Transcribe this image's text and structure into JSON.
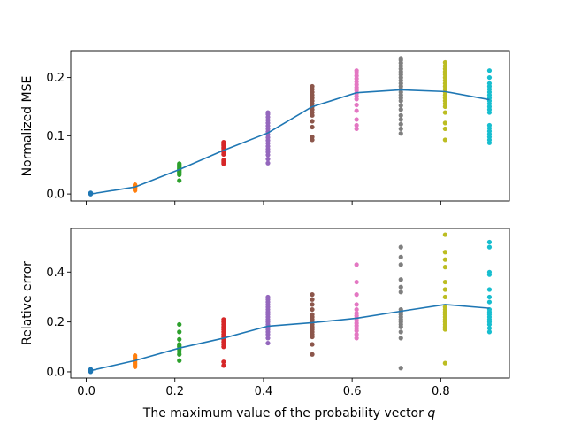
{
  "chart_data": [
    {
      "type": "scatter",
      "ylabel": "Normalized MSE",
      "xlabel": "",
      "xlim": [
        -0.035,
        0.955
      ],
      "ylim": [
        -0.012,
        0.245
      ],
      "xticks": [
        0.0,
        0.2,
        0.4,
        0.6,
        0.8
      ],
      "yticks": [
        0.0,
        0.1,
        0.2
      ],
      "ytick_labels": [
        "0.0",
        "0.1",
        "0.2"
      ],
      "show_xtick_labels": false,
      "grid": false,
      "mean_line": {
        "color": "#1f77b4",
        "x": [
          0.01,
          0.11,
          0.21,
          0.31,
          0.41,
          0.51,
          0.61,
          0.71,
          0.81,
          0.91
        ],
        "y": [
          0.0,
          0.012,
          0.042,
          0.075,
          0.105,
          0.15,
          0.174,
          0.179,
          0.176,
          0.162
        ]
      },
      "groups": [
        {
          "x": 0.01,
          "color": "#1f77b4",
          "values": [
            0.0,
            0.0005,
            0.001,
            0.0015,
            0.002,
            0.0005,
            0.001,
            0.0
          ]
        },
        {
          "x": 0.11,
          "color": "#ff7f0e",
          "values": [
            0.006,
            0.008,
            0.009,
            0.01,
            0.011,
            0.012,
            0.013,
            0.014,
            0.015,
            0.016
          ]
        },
        {
          "x": 0.21,
          "color": "#2ca02c",
          "values": [
            0.023,
            0.033,
            0.036,
            0.038,
            0.04,
            0.042,
            0.044,
            0.046,
            0.048,
            0.05,
            0.052
          ]
        },
        {
          "x": 0.31,
          "color": "#d62728",
          "values": [
            0.052,
            0.055,
            0.058,
            0.068,
            0.072,
            0.075,
            0.078,
            0.08,
            0.083,
            0.085,
            0.087,
            0.089
          ]
        },
        {
          "x": 0.41,
          "color": "#9467bd",
          "values": [
            0.053,
            0.06,
            0.067,
            0.072,
            0.077,
            0.082,
            0.087,
            0.092,
            0.097,
            0.102,
            0.107,
            0.112,
            0.117,
            0.122,
            0.127,
            0.132,
            0.137,
            0.14
          ]
        },
        {
          "x": 0.51,
          "color": "#8c564b",
          "values": [
            0.093,
            0.098,
            0.115,
            0.125,
            0.135,
            0.14,
            0.145,
            0.15,
            0.155,
            0.16,
            0.165,
            0.17,
            0.175,
            0.18,
            0.185
          ]
        },
        {
          "x": 0.61,
          "color": "#e377c2",
          "values": [
            0.112,
            0.118,
            0.128,
            0.143,
            0.153,
            0.163,
            0.168,
            0.173,
            0.178,
            0.183,
            0.188,
            0.193,
            0.198,
            0.203,
            0.208,
            0.212
          ]
        },
        {
          "x": 0.71,
          "color": "#7f7f7f",
          "values": [
            0.104,
            0.112,
            0.12,
            0.128,
            0.135,
            0.145,
            0.152,
            0.16,
            0.165,
            0.17,
            0.175,
            0.18,
            0.185,
            0.19,
            0.195,
            0.2,
            0.205,
            0.21,
            0.215,
            0.22,
            0.225,
            0.23,
            0.233
          ]
        },
        {
          "x": 0.81,
          "color": "#bcbd22",
          "values": [
            0.093,
            0.112,
            0.122,
            0.14,
            0.15,
            0.155,
            0.16,
            0.165,
            0.17,
            0.175,
            0.18,
            0.185,
            0.19,
            0.195,
            0.2,
            0.205,
            0.21,
            0.215,
            0.22,
            0.226
          ]
        },
        {
          "x": 0.91,
          "color": "#17becf",
          "values": [
            0.088,
            0.093,
            0.098,
            0.103,
            0.108,
            0.113,
            0.118,
            0.14,
            0.145,
            0.15,
            0.155,
            0.16,
            0.165,
            0.17,
            0.175,
            0.18,
            0.185,
            0.19,
            0.2,
            0.212
          ]
        }
      ]
    },
    {
      "type": "scatter",
      "ylabel": "Relative error",
      "xlabel": "The maximum value of the probability vector ",
      "xlabel_math": "q",
      "xlim": [
        -0.035,
        0.955
      ],
      "ylim": [
        -0.025,
        0.575
      ],
      "xticks": [
        0.0,
        0.2,
        0.4,
        0.6,
        0.8
      ],
      "xtick_labels": [
        "0.0",
        "0.2",
        "0.4",
        "0.6",
        "0.8"
      ],
      "yticks": [
        0.0,
        0.2,
        0.4
      ],
      "ytick_labels": [
        "0.0",
        "0.2",
        "0.4"
      ],
      "show_xtick_labels": true,
      "grid": false,
      "mean_line": {
        "color": "#1f77b4",
        "x": [
          0.01,
          0.11,
          0.21,
          0.31,
          0.41,
          0.51,
          0.61,
          0.71,
          0.81,
          0.91
        ],
        "y": [
          0.005,
          0.045,
          0.095,
          0.135,
          0.183,
          0.197,
          0.215,
          0.243,
          0.27,
          0.255
        ]
      },
      "groups": [
        {
          "x": 0.01,
          "color": "#1f77b4",
          "values": [
            0.0,
            0.002,
            0.004,
            0.006,
            0.008,
            0.01
          ]
        },
        {
          "x": 0.11,
          "color": "#ff7f0e",
          "values": [
            0.02,
            0.025,
            0.03,
            0.035,
            0.04,
            0.045,
            0.05,
            0.055,
            0.06,
            0.065
          ]
        },
        {
          "x": 0.21,
          "color": "#2ca02c",
          "values": [
            0.045,
            0.07,
            0.08,
            0.09,
            0.1,
            0.105,
            0.11,
            0.13,
            0.16,
            0.19
          ]
        },
        {
          "x": 0.31,
          "color": "#d62728",
          "values": [
            0.025,
            0.04,
            0.1,
            0.11,
            0.12,
            0.13,
            0.14,
            0.15,
            0.16,
            0.17,
            0.18,
            0.19,
            0.2,
            0.21
          ]
        },
        {
          "x": 0.41,
          "color": "#9467bd",
          "values": [
            0.115,
            0.135,
            0.15,
            0.16,
            0.17,
            0.18,
            0.19,
            0.2,
            0.21,
            0.22,
            0.23,
            0.24,
            0.25,
            0.26,
            0.27,
            0.28,
            0.29,
            0.3
          ]
        },
        {
          "x": 0.51,
          "color": "#8c564b",
          "values": [
            0.07,
            0.11,
            0.14,
            0.15,
            0.16,
            0.17,
            0.18,
            0.19,
            0.2,
            0.21,
            0.22,
            0.23,
            0.25,
            0.27,
            0.29,
            0.31
          ]
        },
        {
          "x": 0.61,
          "color": "#e377c2",
          "values": [
            0.135,
            0.15,
            0.165,
            0.175,
            0.185,
            0.195,
            0.205,
            0.215,
            0.225,
            0.235,
            0.25,
            0.27,
            0.31,
            0.36,
            0.43
          ]
        },
        {
          "x": 0.71,
          "color": "#7f7f7f",
          "values": [
            0.015,
            0.135,
            0.16,
            0.18,
            0.19,
            0.2,
            0.21,
            0.22,
            0.23,
            0.24,
            0.25,
            0.32,
            0.34,
            0.37,
            0.43,
            0.46,
            0.5
          ]
        },
        {
          "x": 0.81,
          "color": "#bcbd22",
          "values": [
            0.035,
            0.17,
            0.18,
            0.19,
            0.2,
            0.21,
            0.22,
            0.23,
            0.24,
            0.25,
            0.26,
            0.3,
            0.33,
            0.36,
            0.42,
            0.45,
            0.48,
            0.55
          ]
        },
        {
          "x": 0.91,
          "color": "#17becf",
          "values": [
            0.16,
            0.175,
            0.19,
            0.2,
            0.21,
            0.22,
            0.23,
            0.24,
            0.25,
            0.28,
            0.3,
            0.33,
            0.39,
            0.4,
            0.5,
            0.52
          ]
        }
      ]
    }
  ]
}
